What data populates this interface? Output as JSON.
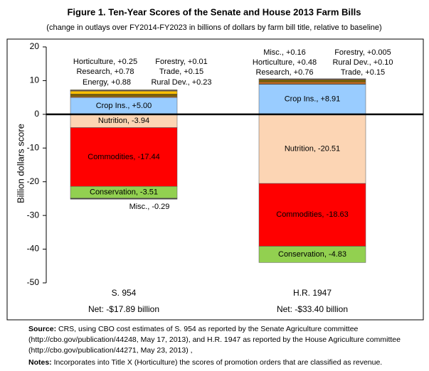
{
  "chart_data": {
    "type": "stacked_bar",
    "title": "Figure 1. Ten-Year Scores of the Senate and House 2013 Farm Bills",
    "subtitle": "(change in outlays over FY2014-FY2023 in billions of dollars by farm bill title, relative to baseline)",
    "y_label": "Billion dollars score",
    "categories": [
      "S. 954",
      "H.R. 1947"
    ],
    "category_notes": [
      "Net: -$17.89 billion",
      "Net: -$33.40 billion"
    ],
    "ylim": [
      -50,
      20
    ],
    "yticks": [
      -50,
      -40,
      -30,
      -20,
      -10,
      0,
      10,
      20
    ],
    "series": [
      {
        "color": "#99ccff",
        "values": [
          5.0,
          8.91
        ],
        "value_labels": [
          "Crop Ins., +5.00",
          "Crop Ins., +8.91"
        ]
      },
      {
        "color": "#fcd5b4",
        "values": [
          -3.94,
          -20.51
        ],
        "value_labels": [
          "Nutrition, -3.94",
          "Nutrition, -20.51"
        ]
      },
      {
        "color": "#ff0000",
        "values": [
          -17.44,
          -18.63
        ],
        "value_labels": [
          "Commodities, -17.44",
          "Commodities, -18.63"
        ]
      },
      {
        "color": "#92d050",
        "values": [
          -3.51,
          -4.83
        ],
        "value_labels": [
          "Conservation, -3.51",
          "Conservation, -4.83"
        ]
      },
      {
        "color": "#404040",
        "values": [
          -0.29,
          0.16
        ],
        "value_labels": [
          "Misc., -0.29",
          "Misc., +0.16"
        ]
      },
      {
        "color": "#e46c0a",
        "values": [
          0.25,
          0.48
        ],
        "value_labels": [
          "Horticulture, +0.25",
          "Horticulture, +0.48"
        ]
      },
      {
        "color": "#7f6000",
        "values": [
          0.78,
          0.76
        ],
        "value_labels": [
          "Research, +0.78",
          "Research, +0.76"
        ]
      },
      {
        "color": "#ffc000",
        "values": [
          0.88,
          null
        ],
        "value_labels": [
          "Energy, +0.88",
          null
        ]
      },
      {
        "color": "#4f6228",
        "values": [
          0.01,
          0.005
        ],
        "value_labels": [
          "Forestry, +0.01",
          "Forestry, +0.005"
        ]
      },
      {
        "color": "#c0504d",
        "values": [
          0.15,
          0.15
        ],
        "value_labels": [
          "Trade, +0.15",
          "Trade, +0.15"
        ]
      },
      {
        "color": "#948a54",
        "values": [
          0.23,
          0.1
        ],
        "value_labels": [
          "Rural Dev., +0.23",
          "Rural Dev., +0.10"
        ]
      }
    ],
    "source_label": "Source:",
    "source": "CRS, using CBO cost estimates of S. 954 as reported by the Senate Agriculture committee (http://cbo.gov/publication/44248, May 17, 2013), and H.R. 1947 as reported by the House Agriculture committee (http://cbo.gov/publication/44271, May 23, 2013) ,",
    "notes_label": "Notes:",
    "notes": "Incorporates into Title X (Horticulture) the scores of promotion orders that are classified as revenue."
  }
}
